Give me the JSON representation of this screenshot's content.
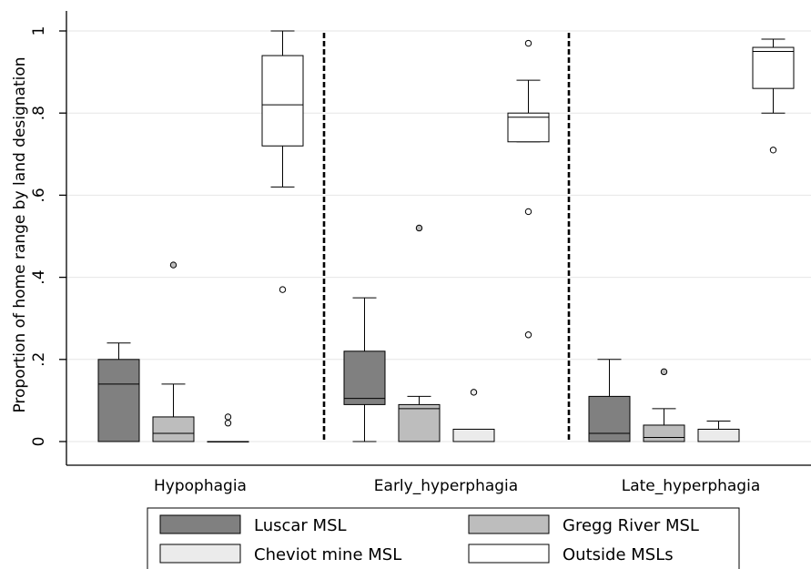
{
  "chart_data": {
    "type": "box",
    "ylabel": "Proportion of home range by land designation",
    "ylim": [
      0,
      1.05
    ],
    "yticks": [
      {
        "value": 0,
        "label": "0"
      },
      {
        "value": 0.2,
        "label": ".2"
      },
      {
        "value": 0.4,
        "label": ".4"
      },
      {
        "value": 0.6,
        "label": ".6"
      },
      {
        "value": 0.8,
        "label": ".8"
      },
      {
        "value": 1,
        "label": "1"
      }
    ],
    "grid": true,
    "legend_position": "bottom",
    "groups": [
      "Hypophagia",
      "Early_hyperphagia",
      "Late_hyperphagia"
    ],
    "series": [
      {
        "name": "Luscar MSL",
        "color": "#808080",
        "boxes": [
          {
            "group": "Hypophagia",
            "min": 0,
            "q1": 0,
            "median": 0.14,
            "q3": 0.2,
            "max": 0.24,
            "outliers": []
          },
          {
            "group": "Early_hyperphagia",
            "min": 0,
            "q1": 0.09,
            "median": 0.105,
            "q3": 0.22,
            "max": 0.35,
            "outliers": []
          },
          {
            "group": "Late_hyperphagia",
            "min": 0,
            "q1": 0,
            "median": 0.02,
            "q3": 0.11,
            "max": 0.2,
            "outliers": []
          }
        ]
      },
      {
        "name": "Gregg River MSL",
        "color": "#bdbdbd",
        "boxes": [
          {
            "group": "Hypophagia",
            "min": 0,
            "q1": 0,
            "median": 0.02,
            "q3": 0.06,
            "max": 0.14,
            "outliers": [
              0.43
            ]
          },
          {
            "group": "Early_hyperphagia",
            "min": 0,
            "q1": 0,
            "median": 0.08,
            "q3": 0.09,
            "max": 0.11,
            "outliers": [
              0.52
            ]
          },
          {
            "group": "Late_hyperphagia",
            "min": 0,
            "q1": 0,
            "median": 0.01,
            "q3": 0.04,
            "max": 0.08,
            "outliers": [
              0.17
            ]
          }
        ]
      },
      {
        "name": "Cheviot mine MSL",
        "color": "#ebebeb",
        "boxes": [
          {
            "group": "Hypophagia",
            "min": 0,
            "q1": 0,
            "median": 0,
            "q3": 0,
            "max": 0,
            "outliers": [
              0.045,
              0.06
            ]
          },
          {
            "group": "Early_hyperphagia",
            "min": 0,
            "q1": 0,
            "median": 0,
            "q3": 0.03,
            "max": 0.03,
            "outliers": [
              0.12
            ]
          },
          {
            "group": "Late_hyperphagia",
            "min": 0,
            "q1": 0,
            "median": 0,
            "q3": 0.03,
            "max": 0.05,
            "outliers": []
          }
        ]
      },
      {
        "name": "Outside MSLs",
        "color": "#ffffff",
        "boxes": [
          {
            "group": "Hypophagia",
            "min": 0.62,
            "q1": 0.72,
            "median": 0.82,
            "q3": 0.94,
            "max": 1.0,
            "outliers": [
              0.37
            ]
          },
          {
            "group": "Early_hyperphagia",
            "min": 0.73,
            "q1": 0.73,
            "median": 0.79,
            "q3": 0.8,
            "max": 0.88,
            "outliers": [
              0.97,
              0.56,
              0.26
            ]
          },
          {
            "group": "Late_hyperphagia",
            "min": 0.8,
            "q1": 0.86,
            "median": 0.95,
            "q3": 0.96,
            "max": 0.98,
            "outliers": [
              0.71
            ]
          }
        ]
      }
    ]
  }
}
